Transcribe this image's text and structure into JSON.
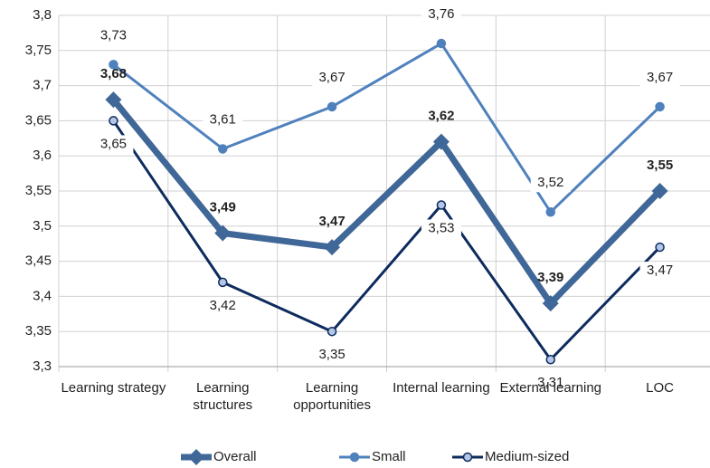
{
  "chart_data": {
    "type": "line",
    "categories": [
      "Learning strategy",
      "Learning structures",
      "Learning opportunities",
      "Internal learning",
      "External learning",
      "LOC"
    ],
    "series": [
      {
        "name": "Overall",
        "color": "#3f6797",
        "values": [
          3.68,
          3.49,
          3.47,
          3.62,
          3.39,
          3.55
        ],
        "value_labels": [
          "3,68",
          "3,49",
          "3,47",
          "3,62",
          "3,39",
          "3,55"
        ]
      },
      {
        "name": "Small",
        "color": "#4f81bd",
        "values": [
          3.73,
          3.61,
          3.67,
          3.76,
          3.52,
          3.67
        ],
        "value_labels": [
          "3,73",
          "3,61",
          "3,67",
          "3,76",
          "3,52",
          "3,67"
        ]
      },
      {
        "name": "Medium-sized",
        "color": "#0d2b5e",
        "values": [
          3.65,
          3.42,
          3.35,
          3.53,
          3.31,
          3.47
        ],
        "value_labels": [
          "3,65",
          "3,42",
          "3,35",
          "3,53",
          "3,31",
          "3,47"
        ]
      }
    ],
    "ylim": [
      3.3,
      3.8
    ],
    "yticks": [
      {
        "value": 3.3,
        "label": "3,3"
      },
      {
        "value": 3.35,
        "label": "3,35"
      },
      {
        "value": 3.4,
        "label": "3,4"
      },
      {
        "value": 3.45,
        "label": "3,45"
      },
      {
        "value": 3.5,
        "label": "3,5"
      },
      {
        "value": 3.55,
        "label": "3,55"
      },
      {
        "value": 3.6,
        "label": "3,6"
      },
      {
        "value": 3.65,
        "label": "3,65"
      },
      {
        "value": 3.7,
        "label": "3,7"
      },
      {
        "value": 3.75,
        "label": "3,75"
      },
      {
        "value": 3.8,
        "label": "3,8"
      }
    ],
    "grid": true,
    "legend": "bottom"
  }
}
